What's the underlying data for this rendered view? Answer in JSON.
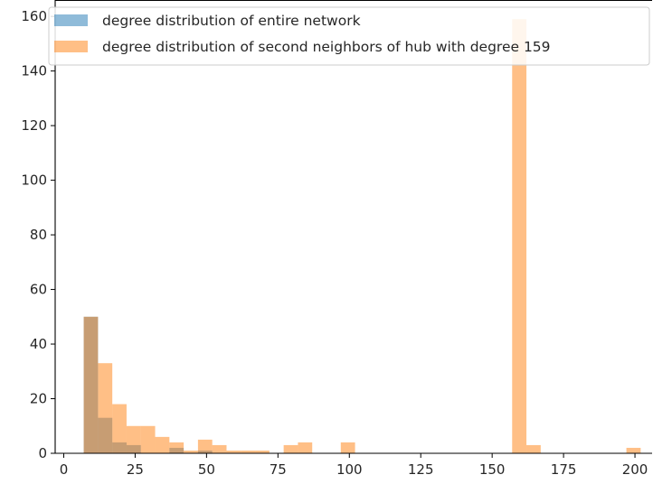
{
  "chart_data": {
    "type": "bar",
    "title": "",
    "xlabel": "",
    "ylabel": "",
    "xlim": [
      -3,
      206
    ],
    "ylim": [
      0,
      166
    ],
    "x_ticks": [
      0,
      25,
      50,
      75,
      100,
      125,
      150,
      175,
      200
    ],
    "y_ticks": [
      0,
      20,
      40,
      60,
      80,
      100,
      120,
      140,
      160
    ],
    "grid": false,
    "legend_position": "top-left",
    "series": [
      {
        "name": "degree distribution of entire network",
        "color": "#1f77b4",
        "opacity": 0.5,
        "bins": [
          {
            "x0": 7,
            "x1": 12,
            "count": 50
          },
          {
            "x0": 12,
            "x1": 17,
            "count": 13
          },
          {
            "x0": 17,
            "x1": 22,
            "count": 4
          },
          {
            "x0": 22,
            "x1": 27,
            "count": 3
          },
          {
            "x0": 37,
            "x1": 42,
            "count": 2
          },
          {
            "x0": 47,
            "x1": 52,
            "count": 1
          }
        ]
      },
      {
        "name": "degree distribution of second neighbors of hub with degree 159",
        "color": "#ff7f0e",
        "opacity": 0.5,
        "bins": [
          {
            "x0": 7,
            "x1": 12,
            "count": 50
          },
          {
            "x0": 12,
            "x1": 17,
            "count": 33
          },
          {
            "x0": 17,
            "x1": 22,
            "count": 18
          },
          {
            "x0": 22,
            "x1": 27,
            "count": 10
          },
          {
            "x0": 27,
            "x1": 32,
            "count": 10
          },
          {
            "x0": 32,
            "x1": 37,
            "count": 6
          },
          {
            "x0": 37,
            "x1": 42,
            "count": 4
          },
          {
            "x0": 42,
            "x1": 47,
            "count": 1
          },
          {
            "x0": 47,
            "x1": 52,
            "count": 5
          },
          {
            "x0": 52,
            "x1": 57,
            "count": 3
          },
          {
            "x0": 57,
            "x1": 62,
            "count": 1
          },
          {
            "x0": 62,
            "x1": 67,
            "count": 1
          },
          {
            "x0": 67,
            "x1": 72,
            "count": 1
          },
          {
            "x0": 77,
            "x1": 82,
            "count": 3
          },
          {
            "x0": 82,
            "x1": 87,
            "count": 4
          },
          {
            "x0": 97,
            "x1": 102,
            "count": 4
          },
          {
            "x0": 157,
            "x1": 162,
            "count": 159
          },
          {
            "x0": 162,
            "x1": 167,
            "count": 3
          },
          {
            "x0": 197,
            "x1": 202,
            "count": 2
          }
        ]
      }
    ]
  }
}
